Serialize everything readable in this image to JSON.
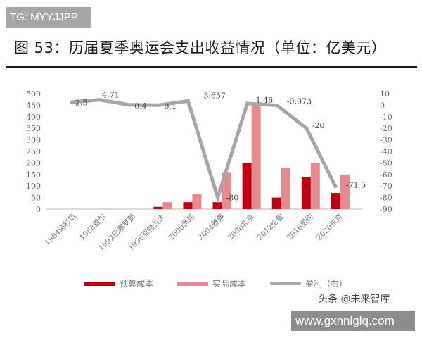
{
  "watermark_top": "TG: MYYJJPP",
  "title": "图 53：历届夏季奥运会支出收益情况（单位：亿美元）",
  "watermark_source": "头条 @未来智库",
  "watermark_bottom": "www.gxnnlglq.com",
  "legend": [
    {
      "label": "预算成本",
      "color": "#c00010"
    },
    {
      "label": "实际成本",
      "color": "#e58a8e"
    },
    {
      "label": "盈利（右）",
      "color": "#a6a6a6"
    }
  ],
  "chart_data": {
    "type": "bar",
    "title": "图 53：历届夏季奥运会支出收益情况（单位：亿美元）",
    "xlabel": "",
    "ylabel": "",
    "categories": [
      "1984洛杉矶",
      "1988首尔",
      "1992巴塞罗那",
      "1996亚特兰大",
      "2000悉尼",
      "2004雅典",
      "2008北京",
      "2012伦敦",
      "2016里约",
      "2020东京"
    ],
    "series": [
      {
        "name": "预算成本",
        "type": "bar",
        "axis": "left",
        "color": "#c00010",
        "values": [
          null,
          null,
          null,
          10,
          30,
          30,
          200,
          50,
          140,
          70
        ]
      },
      {
        "name": "实际成本",
        "type": "bar",
        "axis": "left",
        "color": "#e58a8e",
        "values": [
          null,
          null,
          null,
          30,
          65,
          160,
          450,
          177,
          200,
          150
        ]
      },
      {
        "name": "盈利（右）",
        "type": "line",
        "axis": "right",
        "color": "#a6a6a6",
        "values": [
          2.5,
          4.71,
          0.4,
          0.1,
          3.657,
          -80,
          1.46,
          -0.073,
          -20,
          -71.5
        ],
        "data_labels": [
          "2.5",
          "4.71",
          "0.4",
          "0.1",
          "3.657",
          "-80",
          "1.46",
          "-0.073",
          "-20",
          "-71.5"
        ]
      }
    ],
    "ylim": [
      0,
      500
    ],
    "yticks": [
      0,
      50,
      100,
      150,
      200,
      250,
      300,
      350,
      400,
      450,
      500
    ],
    "y2lim": [
      -90,
      10
    ],
    "y2ticks": [
      10,
      0,
      -10,
      -20,
      -30,
      -40,
      -50,
      -60,
      -70,
      -80,
      -90
    ],
    "grid": false,
    "legend_position": "bottom"
  }
}
